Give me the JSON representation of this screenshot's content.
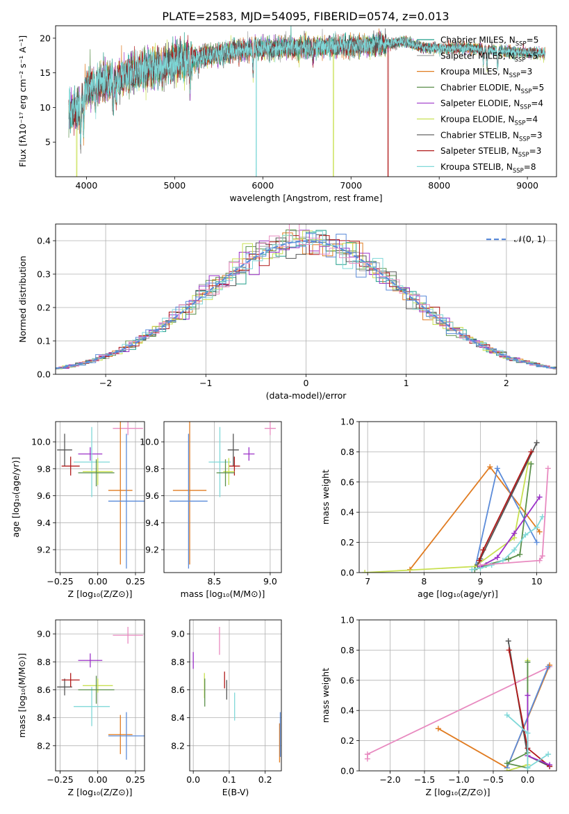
{
  "figure_title": "PLATE=2583, MJD=54095, FIBERID=0574, z=0.013",
  "colors": {
    "chabrier_miles": "#1f9e89",
    "salpeter_miles": "#9e9e9e",
    "kroupa_miles": "#e07b20",
    "chabrier_elodie": "#5a8f4a",
    "salpeter_elodie": "#9b30c8",
    "kroupa_elodie": "#c8e050",
    "chabrier_stelib": "#555555",
    "salpeter_stelib": "#b01818",
    "kroupa_stelib": "#7fd8d8",
    "blue": "#5b8bd9",
    "pink": "#e88ac0",
    "normal_curve": "#5b8bd9",
    "grid": "#b0b0b0"
  },
  "chart_data": [
    {
      "id": "spectrum",
      "type": "line",
      "title": "PLATE=2583, MJD=54095, FIBERID=0574, z=0.013",
      "xlabel": "wavelength [Angstrom, rest frame]",
      "ylabel": "Flux [fλ10⁻¹⁷ erg cm⁻² s⁻¹ A⁻¹]",
      "xlim": [
        3650,
        9330
      ],
      "ylim": [
        0,
        21.8
      ],
      "xticks": [
        "4000",
        "5000",
        "6000",
        "7000",
        "8000",
        "9000"
      ],
      "yticks": [
        "5",
        "10",
        "15",
        "20"
      ],
      "grid": false,
      "legend_position": "top-right",
      "continuum": {
        "x": [
          3800,
          3900,
          4000,
          4100,
          4300,
          4500,
          4700,
          5000,
          5200,
          5500,
          5800,
          6000,
          6500,
          7000,
          7300,
          7500,
          7600,
          7700,
          7800,
          8000,
          8300,
          8600,
          8900,
          9200
        ],
        "y": [
          9.5,
          9.8,
          12.5,
          13.5,
          14.0,
          14.8,
          15.6,
          16.5,
          17.0,
          17.8,
          18.4,
          18.6,
          18.7,
          18.9,
          19.0,
          19.3,
          19.5,
          19.1,
          18.7,
          18.5,
          18.6,
          18.3,
          18.0,
          17.8
        ]
      },
      "series": [
        {
          "name": "Chabrier MILES, N_SSP=5",
          "legend_main": "Chabrier MILES, N",
          "legend_sub": "SSP",
          "legend_tail": "=5",
          "color_key": "chabrier_miles"
        },
        {
          "name": "Salpeter MILES, N_SSP=5",
          "legend_main": "Salpeter MILES, N",
          "legend_sub": "SSP",
          "legend_tail": "=5",
          "color_key": "salpeter_miles"
        },
        {
          "name": "Kroupa MILES, N_SSP=3",
          "legend_main": "Kroupa MILES, N",
          "legend_sub": "SSP",
          "legend_tail": "=3",
          "color_key": "kroupa_miles"
        },
        {
          "name": "Chabrier ELODIE, N_SSP=5",
          "legend_main": "Chabrier ELODIE, N",
          "legend_sub": "SSP",
          "legend_tail": "=5",
          "color_key": "chabrier_elodie"
        },
        {
          "name": "Salpeter ELODIE, N_SSP=4",
          "legend_main": "Salpeter ELODIE, N",
          "legend_sub": "SSP",
          "legend_tail": "=4",
          "color_key": "salpeter_elodie"
        },
        {
          "name": "Kroupa ELODIE, N_SSP=4",
          "legend_main": "Kroupa ELODIE, N",
          "legend_sub": "SSP",
          "legend_tail": "=4",
          "color_key": "kroupa_elodie"
        },
        {
          "name": "Chabrier STELIB, N_SSP=3",
          "legend_main": "Chabrier STELIB, N",
          "legend_sub": "SSP",
          "legend_tail": "=3",
          "color_key": "chabrier_stelib"
        },
        {
          "name": "Salpeter STELIB, N_SSP=3",
          "legend_main": "Salpeter STELIB, N",
          "legend_sub": "SSP",
          "legend_tail": "=3",
          "color_key": "salpeter_stelib"
        },
        {
          "name": "Kroupa STELIB, N_SSP=8",
          "legend_main": "Kroupa STELIB, N",
          "legend_sub": "SSP",
          "legend_tail": "=8",
          "color_key": "kroupa_stelib"
        }
      ],
      "dropouts": [
        {
          "color_key": "kroupa_stelib",
          "x": 5925
        },
        {
          "color_key": "kroupa_elodie",
          "x": 6800
        },
        {
          "color_key": "salpeter_stelib",
          "x": 7420
        },
        {
          "color_key": "kroupa_elodie",
          "x": 3890
        }
      ]
    },
    {
      "id": "residuals",
      "type": "histogram",
      "xlabel": "(data-model)/error",
      "ylabel": "Normed distribution",
      "xlim": [
        -2.5,
        2.5
      ],
      "ylim": [
        0,
        0.45
      ],
      "xticks": [
        "−2",
        "−1",
        "0",
        "1",
        "2"
      ],
      "xtick_values": [
        -2,
        -1,
        0,
        1,
        2
      ],
      "yticks": [
        "0.0",
        "0.1",
        "0.2",
        "0.3",
        "0.4"
      ],
      "ytick_values": [
        0,
        0.1,
        0.2,
        0.3,
        0.4
      ],
      "grid": true,
      "bin_width": 0.1,
      "legend_label": "𝒩(0, 1)",
      "legend_position": "top-right",
      "normal_mean": 0,
      "normal_sigma": 1
    },
    {
      "id": "age_vs_Z",
      "type": "errorbar",
      "xlabel": "Z [log₁₀(Z/Z⊙)]",
      "ylabel": "age  [log₁₀(age/yr)]",
      "xlim": [
        -0.28,
        0.31
      ],
      "ylim": [
        9.03,
        10.15
      ],
      "xticks": [
        "−0.25",
        "0.00",
        "0.25"
      ],
      "xtick_values": [
        -0.25,
        0.0,
        0.25
      ],
      "yticks": [
        "9.2",
        "9.4",
        "9.6",
        "9.8",
        "10.0"
      ],
      "ytick_values": [
        9.2,
        9.4,
        9.6,
        9.8,
        10.0
      ],
      "grid": true,
      "points": [
        {
          "color_key": "chabrier_stelib",
          "x": -0.22,
          "xerr": 0.05,
          "y": 9.94,
          "yerr": 0.12
        },
        {
          "color_key": "salpeter_stelib",
          "x": -0.18,
          "xerr": 0.06,
          "y": 9.82,
          "yerr": 0.07
        },
        {
          "color_key": "salpeter_elodie",
          "x": -0.05,
          "xerr": 0.08,
          "y": 9.91,
          "yerr": 0.05
        },
        {
          "color_key": "kroupa_stelib",
          "x": -0.04,
          "xerr": 0.12,
          "y": 9.85,
          "yerr": 0.26
        },
        {
          "color_key": "kroupa_elodie",
          "x": 0.0,
          "xerr": 0.1,
          "y": 9.78,
          "yerr": 0.1
        },
        {
          "color_key": "chabrier_elodie",
          "x": -0.01,
          "xerr": 0.12,
          "y": 9.77,
          "yerr": 0.1
        },
        {
          "color_key": "pink",
          "x": 0.2,
          "xerr": 0.1,
          "y": 10.1,
          "yerr": 0.05
        },
        {
          "color_key": "kroupa_miles",
          "x": 0.15,
          "xerr": 0.08,
          "y": 9.64,
          "yerr": 0.55
        },
        {
          "color_key": "blue",
          "x": 0.19,
          "xerr": 0.12,
          "y": 9.56,
          "yerr": 0.5
        }
      ]
    },
    {
      "id": "age_vs_mass",
      "type": "errorbar",
      "xlabel": "mass [log₁₀(M/M⊙)]",
      "ylabel": "",
      "xlim": [
        8.05,
        9.1
      ],
      "ylim": [
        9.03,
        10.15
      ],
      "xticks": [
        "8.5",
        "9.0"
      ],
      "xtick_values": [
        8.5,
        9.0
      ],
      "yticks": [
        "9.2",
        "9.4",
        "9.6",
        "9.8",
        "10.0"
      ],
      "ytick_values": [
        9.2,
        9.4,
        9.6,
        9.8,
        10.0
      ],
      "grid": true,
      "points": [
        {
          "color_key": "chabrier_stelib",
          "x": 8.67,
          "xerr": 0.05,
          "y": 9.94,
          "yerr": 0.12
        },
        {
          "color_key": "salpeter_stelib",
          "x": 8.68,
          "xerr": 0.05,
          "y": 9.82,
          "yerr": 0.07
        },
        {
          "color_key": "salpeter_elodie",
          "x": 8.81,
          "xerr": 0.05,
          "y": 9.91,
          "yerr": 0.05
        },
        {
          "color_key": "kroupa_stelib",
          "x": 8.55,
          "xerr": 0.1,
          "y": 9.85,
          "yerr": 0.26
        },
        {
          "color_key": "kroupa_elodie",
          "x": 8.63,
          "xerr": 0.05,
          "y": 9.78,
          "yerr": 0.1
        },
        {
          "color_key": "chabrier_elodie",
          "x": 8.6,
          "xerr": 0.08,
          "y": 9.77,
          "yerr": 0.1
        },
        {
          "color_key": "pink",
          "x": 9.0,
          "xerr": 0.05,
          "y": 10.1,
          "yerr": 0.05
        },
        {
          "color_key": "kroupa_miles",
          "x": 8.28,
          "xerr": 0.15,
          "y": 9.64,
          "yerr": 0.55
        },
        {
          "color_key": "blue",
          "x": 8.27,
          "xerr": 0.17,
          "y": 9.56,
          "yerr": 0.5
        }
      ]
    },
    {
      "id": "weight_vs_age",
      "type": "line",
      "xlabel": "age  [log₁₀(age/yr)]",
      "ylabel": "mass weight",
      "xlim": [
        6.85,
        10.35
      ],
      "ylim": [
        0,
        1.0
      ],
      "xticks": [
        "7",
        "8",
        "9",
        "10"
      ],
      "xtick_values": [
        7,
        8,
        9,
        10
      ],
      "yticks": [
        "0.0",
        "0.2",
        "0.4",
        "0.6",
        "0.8",
        "1.0"
      ],
      "ytick_values": [
        0,
        0.2,
        0.4,
        0.6,
        0.8,
        1.0
      ],
      "grid": true,
      "series": [
        {
          "color_key": "kroupa_miles",
          "x": [
            7.75,
            9.17,
            10.05
          ],
          "y": [
            0.02,
            0.7,
            0.27
          ]
        },
        {
          "color_key": "blue",
          "x": [
            8.9,
            9.3,
            10.0
          ],
          "y": [
            0.02,
            0.69,
            0.2
          ]
        },
        {
          "color_key": "kroupa_elodie",
          "x": [
            6.95,
            8.9,
            9.6,
            9.85
          ],
          "y": [
            0.0,
            0.04,
            0.23,
            0.73
          ]
        },
        {
          "color_key": "chabrier_elodie",
          "x": [
            8.9,
            9.1,
            9.5,
            9.7,
            9.9
          ],
          "y": [
            0.02,
            0.05,
            0.09,
            0.12,
            0.72
          ]
        },
        {
          "color_key": "chabrier_stelib",
          "x": [
            8.95,
            9.0,
            10.0
          ],
          "y": [
            0.05,
            0.09,
            0.86
          ]
        },
        {
          "color_key": "salpeter_stelib",
          "x": [
            8.98,
            9.05,
            9.9
          ],
          "y": [
            0.08,
            0.15,
            0.8
          ]
        },
        {
          "color_key": "salpeter_elodie",
          "x": [
            9.0,
            9.3,
            9.6,
            10.05
          ],
          "y": [
            0.04,
            0.1,
            0.26,
            0.5
          ]
        },
        {
          "color_key": "kroupa_stelib",
          "x": [
            8.85,
            9.0,
            9.2,
            9.4,
            9.6,
            9.8,
            10.0,
            10.1
          ],
          "y": [
            0.02,
            0.03,
            0.05,
            0.08,
            0.15,
            0.25,
            0.3,
            0.37
          ]
        },
        {
          "color_key": "pink",
          "x": [
            9.0,
            10.05,
            10.1,
            10.2
          ],
          "y": [
            0.05,
            0.08,
            0.11,
            0.69
          ]
        }
      ]
    },
    {
      "id": "mass_vs_Z",
      "type": "errorbar",
      "xlabel": "Z [log₁₀(Z/Z⊙)]",
      "ylabel": "mass [log₁₀(M/M⊙)]",
      "xlim": [
        -0.28,
        0.31
      ],
      "ylim": [
        8.02,
        9.1
      ],
      "xticks": [
        "−0.25",
        "0.00",
        "0.25"
      ],
      "xtick_values": [
        -0.25,
        0.0,
        0.25
      ],
      "yticks": [
        "8.2",
        "8.4",
        "8.6",
        "8.8",
        "9.0"
      ],
      "ytick_values": [
        8.2,
        8.4,
        8.6,
        8.8,
        9.0
      ],
      "grid": true,
      "points": [
        {
          "color_key": "chabrier_stelib",
          "x": -0.22,
          "xerr": 0.05,
          "y": 8.62,
          "yerr": 0.06
        },
        {
          "color_key": "salpeter_stelib",
          "x": -0.18,
          "xerr": 0.06,
          "y": 8.67,
          "yerr": 0.05
        },
        {
          "color_key": "salpeter_elodie",
          "x": -0.05,
          "xerr": 0.08,
          "y": 8.81,
          "yerr": 0.05
        },
        {
          "color_key": "kroupa_stelib",
          "x": -0.04,
          "xerr": 0.12,
          "y": 8.48,
          "yerr": 0.14
        },
        {
          "color_key": "kroupa_elodie",
          "x": 0.0,
          "xerr": 0.1,
          "y": 8.63,
          "yerr": 0.05
        },
        {
          "color_key": "chabrier_elodie",
          "x": -0.01,
          "xerr": 0.12,
          "y": 8.6,
          "yerr": 0.1
        },
        {
          "color_key": "pink",
          "x": 0.2,
          "xerr": 0.1,
          "y": 8.99,
          "yerr": 0.06
        },
        {
          "color_key": "kroupa_miles",
          "x": 0.15,
          "xerr": 0.08,
          "y": 8.28,
          "yerr": 0.14
        },
        {
          "color_key": "blue",
          "x": 0.19,
          "xerr": 0.12,
          "y": 8.27,
          "yerr": 0.17
        }
      ]
    },
    {
      "id": "mass_vs_ebv",
      "type": "errorbar",
      "xlabel": "E(B-V)",
      "ylabel": "",
      "xlim": [
        -0.01,
        0.245
      ],
      "ylim": [
        8.02,
        9.1
      ],
      "xticks": [
        "0.0",
        "0.1",
        "0.2"
      ],
      "xtick_values": [
        0.0,
        0.1,
        0.2
      ],
      "yticks": [
        "8.2",
        "8.4",
        "8.6",
        "8.8",
        "9.0"
      ],
      "ytick_values": [
        8.2,
        8.4,
        8.6,
        8.8,
        9.0
      ],
      "grid": true,
      "points": [
        {
          "color_key": "salpeter_elodie",
          "x": 0.0,
          "xerr": 0,
          "y": 8.81,
          "yerr": 0.06
        },
        {
          "color_key": "kroupa_elodie",
          "x": 0.031,
          "xerr": 0,
          "y": 8.63,
          "yerr": 0.09
        },
        {
          "color_key": "chabrier_elodie",
          "x": 0.032,
          "xerr": 0,
          "y": 8.58,
          "yerr": 0.1
        },
        {
          "color_key": "pink",
          "x": 0.073,
          "xerr": 0,
          "y": 8.95,
          "yerr": 0.1
        },
        {
          "color_key": "salpeter_stelib",
          "x": 0.087,
          "xerr": 0,
          "y": 8.67,
          "yerr": 0.06
        },
        {
          "color_key": "chabrier_stelib",
          "x": 0.093,
          "xerr": 0,
          "y": 8.6,
          "yerr": 0.07
        },
        {
          "color_key": "kroupa_stelib",
          "x": 0.115,
          "xerr": 0,
          "y": 8.48,
          "yerr": 0.1
        },
        {
          "color_key": "kroupa_miles",
          "x": 0.24,
          "xerr": 0,
          "y": 8.22,
          "yerr": 0.14
        },
        {
          "color_key": "blue",
          "x": 0.242,
          "xerr": 0,
          "y": 8.28,
          "yerr": 0.16
        }
      ]
    },
    {
      "id": "weight_vs_Z",
      "type": "line",
      "xlabel": "Z [log₁₀(Z/Z⊙)]",
      "ylabel": "mass weight",
      "xlim": [
        -2.45,
        0.42
      ],
      "ylim": [
        0,
        1.0
      ],
      "xticks": [
        "−2.0",
        "−1.5",
        "−1.0",
        "−0.5",
        "0.0"
      ],
      "xtick_values": [
        -2.0,
        -1.5,
        -1.0,
        -0.5,
        0.0
      ],
      "yticks": [
        "0.0",
        "0.2",
        "0.4",
        "0.6",
        "0.8",
        "1.0"
      ],
      "ytick_values": [
        0,
        0.2,
        0.4,
        0.6,
        0.8,
        1.0
      ],
      "grid": true,
      "series": [
        {
          "color_key": "pink",
          "x": [
            -2.33,
            -2.33,
            0.32
          ],
          "y": [
            0.08,
            0.11,
            0.69
          ]
        },
        {
          "color_key": "kroupa_miles",
          "x": [
            -1.3,
            -0.3,
            0.32
          ],
          "y": [
            0.28,
            0.02,
            0.7
          ]
        },
        {
          "color_key": "blue",
          "x": [
            -0.3,
            0.3
          ],
          "y": [
            0.02,
            0.69
          ]
        },
        {
          "color_key": "chabrier_stelib",
          "x": [
            -0.28,
            0.0,
            0.32
          ],
          "y": [
            0.86,
            0.1,
            0.03
          ]
        },
        {
          "color_key": "salpeter_stelib",
          "x": [
            -0.27,
            0.0,
            0.32
          ],
          "y": [
            0.8,
            0.15,
            0.03
          ]
        },
        {
          "color_key": "kroupa_elodie",
          "x": [
            0.0,
            0.0,
            -0.3
          ],
          "y": [
            0.73,
            0.04,
            0.0
          ]
        },
        {
          "color_key": "chabrier_elodie",
          "x": [
            0.0,
            0.0,
            -0.3,
            0.0
          ],
          "y": [
            0.72,
            0.12,
            0.05,
            0.02
          ]
        },
        {
          "color_key": "salpeter_elodie",
          "x": [
            0.0,
            0.0,
            0.32
          ],
          "y": [
            0.5,
            0.1,
            0.04
          ]
        },
        {
          "color_key": "kroupa_stelib",
          "x": [
            -0.3,
            0.0,
            0.0,
            0.3
          ],
          "y": [
            0.37,
            0.25,
            0.02,
            0.11
          ]
        }
      ]
    }
  ]
}
